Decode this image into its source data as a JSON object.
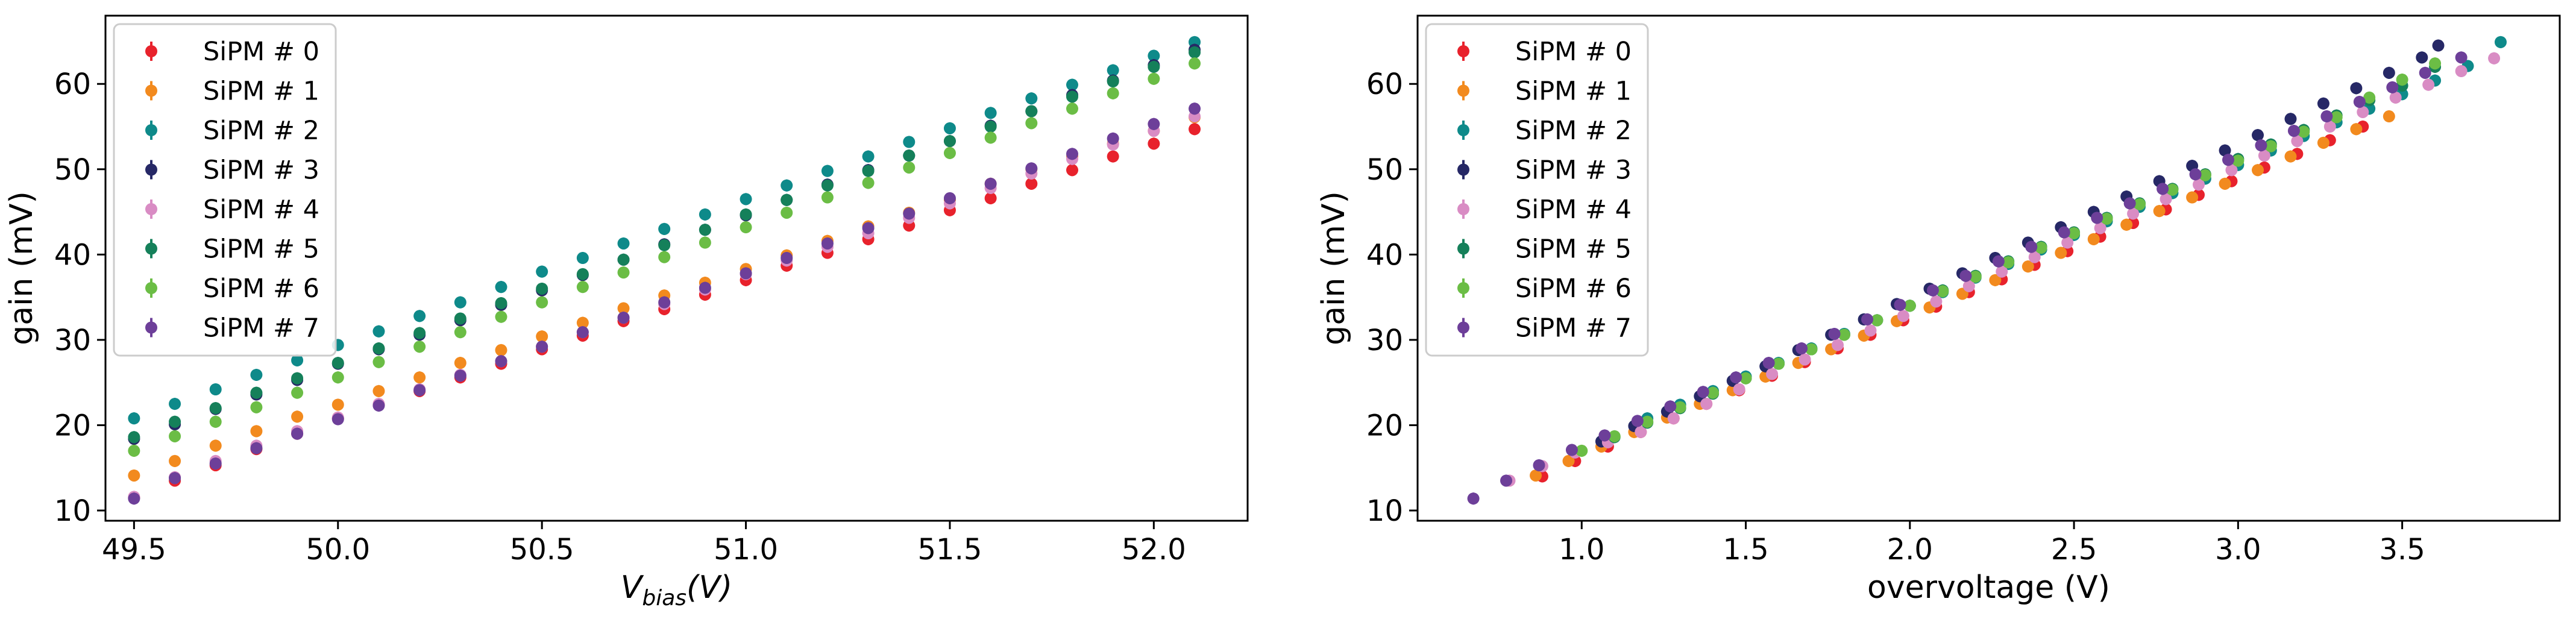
{
  "colors": [
    "#e8222c",
    "#f28a1e",
    "#0e8a8a",
    "#262866",
    "#d98cc4",
    "#15805a",
    "#6bbd45",
    "#6d3f99"
  ],
  "chart_data": [
    {
      "type": "scatter",
      "xlabel_main": "V",
      "xlabel_sub": "bias",
      "xlabel_tail": "(V)",
      "ylabel": "gain (mV)",
      "xlim": [
        49.43,
        52.23
      ],
      "ylim": [
        8.8,
        68
      ],
      "xticks": [
        49.5,
        50.0,
        50.5,
        51.0,
        51.5,
        52.0
      ],
      "xtick_labels": [
        "49.5",
        "50.0",
        "50.5",
        "51.0",
        "51.5",
        "52.0"
      ],
      "yticks": [
        10,
        20,
        30,
        40,
        50,
        60
      ],
      "ytick_labels": [
        "10",
        "20",
        "30",
        "40",
        "50",
        "60"
      ],
      "legend_position": "upper-left",
      "series": [
        {
          "name": "SiPM # 0",
          "x": [
            49.5,
            49.6,
            49.7,
            49.8,
            49.9,
            50.0,
            50.1,
            50.2,
            50.3,
            50.4,
            50.5,
            50.6,
            50.7,
            50.8,
            50.9,
            51.0,
            51.1,
            51.2,
            51.3,
            51.4,
            51.5,
            51.6,
            51.7,
            51.8,
            51.9,
            52.0,
            52.1
          ],
          "y": [
            11.5,
            13.5,
            15.3,
            17.2,
            19.0,
            20.8,
            22.4,
            24.0,
            25.6,
            27.2,
            28.9,
            30.5,
            32.2,
            33.6,
            35.3,
            37.0,
            38.7,
            40.2,
            41.8,
            43.4,
            45.2,
            46.6,
            48.3,
            49.9,
            51.5,
            53.0,
            54.7
          ]
        },
        {
          "name": "SiPM # 1",
          "x": [
            49.5,
            49.6,
            49.7,
            49.8,
            49.9,
            50.0,
            50.1,
            50.2,
            50.3,
            50.4,
            50.5,
            50.6,
            50.7,
            50.8,
            50.9,
            51.0,
            51.1,
            51.2,
            51.3,
            51.4,
            51.5,
            51.6,
            51.7,
            51.8,
            51.9,
            52.0,
            52.1
          ],
          "y": [
            14.1,
            15.8,
            17.6,
            19.3,
            21.0,
            22.4,
            24.0,
            25.6,
            27.3,
            28.8,
            30.4,
            32.0,
            33.7,
            35.2,
            36.7,
            38.3,
            39.9,
            41.6,
            43.3,
            44.9,
            46.4,
            48.3,
            50.0,
            51.5,
            53.0,
            54.5,
            56.1
          ]
        },
        {
          "name": "SiPM # 2",
          "x": [
            49.5,
            49.6,
            49.7,
            49.8,
            49.9,
            50.0,
            50.1,
            50.2,
            50.3,
            50.4,
            50.5,
            50.6,
            50.7,
            50.8,
            50.9,
            51.0,
            51.1,
            51.2,
            51.3,
            51.4,
            51.5,
            51.6,
            51.7,
            51.8,
            51.9,
            52.0,
            52.1
          ],
          "y": [
            20.8,
            22.5,
            24.2,
            25.9,
            27.6,
            29.4,
            31.0,
            32.8,
            34.4,
            36.2,
            38.0,
            39.6,
            41.3,
            43.0,
            44.7,
            46.5,
            48.1,
            49.8,
            51.5,
            53.2,
            54.8,
            56.6,
            58.3,
            59.9,
            61.6,
            63.3,
            64.9
          ]
        },
        {
          "name": "SiPM # 3",
          "x": [
            49.5,
            49.6,
            49.7,
            49.8,
            49.9,
            50.0,
            50.1,
            50.2,
            50.3,
            50.4,
            50.5,
            50.6,
            50.7,
            50.8,
            50.9,
            51.0,
            51.1,
            51.2,
            51.3,
            51.4,
            51.5,
            51.6,
            51.7,
            51.8,
            51.9,
            52.0,
            52.1
          ],
          "y": [
            18.4,
            20.1,
            21.9,
            23.6,
            25.3,
            27.2,
            28.9,
            30.6,
            32.3,
            34.1,
            35.8,
            37.6,
            39.4,
            41.2,
            42.9,
            44.6,
            46.4,
            48.2,
            49.9,
            51.6,
            53.3,
            55.1,
            56.8,
            58.7,
            60.4,
            62.2,
            64.0
          ]
        },
        {
          "name": "SiPM # 4",
          "x": [
            49.5,
            49.6,
            49.7,
            49.8,
            49.9,
            50.0,
            50.1,
            50.2,
            50.3,
            50.4,
            50.5,
            50.6,
            50.7,
            50.8,
            50.9,
            51.0,
            51.1,
            51.2,
            51.3,
            51.4,
            51.5,
            51.6,
            51.7,
            51.8,
            51.9,
            52.0,
            52.1
          ],
          "y": [
            11.6,
            13.9,
            15.8,
            17.6,
            19.3,
            20.9,
            22.5,
            24.2,
            25.9,
            27.5,
            29.2,
            30.9,
            32.6,
            34.2,
            35.9,
            37.7,
            39.3,
            40.9,
            42.5,
            44.3,
            46.0,
            47.8,
            49.5,
            51.2,
            52.9,
            54.5,
            56.2
          ]
        },
        {
          "name": "SiPM # 5",
          "x": [
            49.5,
            49.6,
            49.7,
            49.8,
            49.9,
            50.0,
            50.1,
            50.2,
            50.3,
            50.4,
            50.5,
            50.6,
            50.7,
            50.8,
            50.9,
            51.0,
            51.1,
            51.2,
            51.3,
            51.4,
            51.5,
            51.6,
            51.7,
            51.8,
            51.9,
            52.0,
            52.1
          ],
          "y": [
            18.6,
            20.4,
            22.0,
            23.8,
            25.5,
            27.3,
            29.0,
            30.8,
            32.5,
            34.3,
            36.0,
            37.7,
            39.4,
            41.1,
            42.9,
            44.7,
            46.4,
            48.1,
            49.8,
            51.6,
            53.3,
            55.0,
            56.8,
            58.5,
            60.3,
            62.0,
            63.7
          ]
        },
        {
          "name": "SiPM # 6",
          "x": [
            49.5,
            49.6,
            49.7,
            49.8,
            49.9,
            50.0,
            50.1,
            50.2,
            50.3,
            50.4,
            50.5,
            50.6,
            50.7,
            50.8,
            50.9,
            51.0,
            51.1,
            51.2,
            51.3,
            51.4,
            51.5,
            51.6,
            51.7,
            51.8,
            51.9,
            52.0,
            52.1
          ],
          "y": [
            17.0,
            18.7,
            20.4,
            22.1,
            23.8,
            25.6,
            27.4,
            29.2,
            30.9,
            32.7,
            34.4,
            36.2,
            37.9,
            39.7,
            41.4,
            43.2,
            44.9,
            46.7,
            48.4,
            50.2,
            51.9,
            53.7,
            55.4,
            57.1,
            58.9,
            60.6,
            62.4
          ]
        },
        {
          "name": "SiPM # 7",
          "x": [
            49.5,
            49.6,
            49.7,
            49.8,
            49.9,
            50.0,
            50.1,
            50.2,
            50.3,
            50.4,
            50.5,
            50.6,
            50.7,
            50.8,
            50.9,
            51.0,
            51.1,
            51.2,
            51.3,
            51.4,
            51.5,
            51.6,
            51.7,
            51.8,
            51.9,
            52.0,
            52.1
          ],
          "y": [
            11.4,
            13.8,
            15.5,
            17.3,
            19.0,
            20.7,
            22.3,
            24.1,
            25.8,
            27.5,
            29.2,
            30.9,
            32.6,
            34.4,
            36.1,
            37.8,
            39.6,
            41.3,
            43.1,
            44.8,
            46.6,
            48.3,
            50.1,
            51.8,
            53.6,
            55.3,
            57.1
          ]
        }
      ]
    },
    {
      "type": "scatter",
      "xlabel": "overvoltage (V)",
      "ylabel": "gain (mV)",
      "xlim": [
        0.5,
        3.98
      ],
      "ylim": [
        8.8,
        68
      ],
      "xticks": [
        1.0,
        1.5,
        2.0,
        2.5,
        3.0,
        3.5
      ],
      "xtick_labels": [
        "1.0",
        "1.5",
        "2.0",
        "2.5",
        "3.0",
        "3.5"
      ],
      "yticks": [
        10,
        20,
        30,
        40,
        50,
        60
      ],
      "ytick_labels": [
        "10",
        "20",
        "30",
        "40",
        "50",
        "60"
      ],
      "legend_position": "upper-left",
      "series": [
        {
          "name": "SiPM # 0",
          "x": [
            0.88,
            0.98,
            1.08,
            1.18,
            1.28,
            1.38,
            1.48,
            1.58,
            1.68,
            1.78,
            1.88,
            1.98,
            2.08,
            2.18,
            2.28,
            2.38,
            2.48,
            2.58,
            2.68,
            2.78,
            2.88,
            2.98,
            3.08,
            3.18,
            3.28,
            3.38
          ],
          "y": [
            14.0,
            15.8,
            17.5,
            19.2,
            20.8,
            22.5,
            24.1,
            25.8,
            27.4,
            29.0,
            30.6,
            32.3,
            33.9,
            35.6,
            37.1,
            38.8,
            40.4,
            42.1,
            43.7,
            45.3,
            47.0,
            48.6,
            50.2,
            51.8,
            53.4,
            55.0
          ]
        },
        {
          "name": "SiPM # 1",
          "x": [
            0.86,
            0.96,
            1.06,
            1.16,
            1.26,
            1.36,
            1.46,
            1.56,
            1.66,
            1.76,
            1.86,
            1.96,
            2.06,
            2.16,
            2.26,
            2.36,
            2.46,
            2.56,
            2.66,
            2.76,
            2.86,
            2.96,
            3.06,
            3.16,
            3.26,
            3.36,
            3.46
          ],
          "y": [
            14.1,
            15.8,
            17.5,
            19.2,
            20.9,
            22.5,
            24.1,
            25.7,
            27.3,
            28.9,
            30.5,
            32.2,
            33.8,
            35.4,
            37.0,
            38.6,
            40.2,
            41.8,
            43.5,
            45.1,
            46.7,
            48.3,
            49.9,
            51.5,
            53.1,
            54.7,
            56.2
          ]
        },
        {
          "name": "SiPM # 2",
          "x": [
            1.2,
            1.3,
            1.4,
            1.5,
            1.6,
            1.7,
            1.8,
            1.9,
            2.0,
            2.1,
            2.2,
            2.3,
            2.4,
            2.5,
            2.6,
            2.7,
            2.8,
            2.9,
            3.0,
            3.1,
            3.2,
            3.3,
            3.4,
            3.5,
            3.6,
            3.7,
            3.8
          ],
          "y": [
            20.8,
            22.4,
            24.0,
            25.7,
            27.3,
            29.0,
            30.7,
            32.3,
            34.0,
            35.6,
            37.3,
            38.9,
            40.6,
            42.3,
            43.9,
            45.6,
            47.2,
            48.9,
            50.5,
            52.2,
            53.9,
            55.5,
            57.1,
            58.8,
            60.4,
            62.1,
            64.9
          ]
        },
        {
          "name": "SiPM # 3",
          "x": [
            1.06,
            1.16,
            1.26,
            1.36,
            1.46,
            1.56,
            1.66,
            1.76,
            1.86,
            1.96,
            2.06,
            2.16,
            2.26,
            2.36,
            2.46,
            2.56,
            2.66,
            2.76,
            2.86,
            2.96,
            3.06,
            3.16,
            3.26,
            3.36,
            3.46,
            3.56,
            3.61
          ],
          "y": [
            18.1,
            19.9,
            21.6,
            23.4,
            25.2,
            26.9,
            28.8,
            30.6,
            32.4,
            34.2,
            36.0,
            37.8,
            39.6,
            41.4,
            43.2,
            45.0,
            46.8,
            48.6,
            50.4,
            52.2,
            54.0,
            55.9,
            57.7,
            59.5,
            61.3,
            63.1,
            64.5
          ]
        },
        {
          "name": "SiPM # 4",
          "x": [
            0.78,
            0.88,
            0.98,
            1.08,
            1.18,
            1.28,
            1.38,
            1.48,
            1.58,
            1.68,
            1.78,
            1.88,
            1.98,
            2.08,
            2.18,
            2.28,
            2.38,
            2.48,
            2.58,
            2.68,
            2.78,
            2.88,
            2.98,
            3.08,
            3.18,
            3.28,
            3.38,
            3.48,
            3.58,
            3.68,
            3.78
          ],
          "y": [
            13.5,
            15.2,
            16.8,
            18.0,
            19.2,
            20.8,
            22.5,
            24.2,
            26.0,
            27.7,
            29.4,
            31.1,
            32.8,
            34.5,
            36.3,
            38.0,
            39.7,
            41.4,
            43.1,
            44.8,
            46.5,
            48.2,
            49.9,
            51.6,
            53.3,
            55.0,
            56.7,
            58.4,
            59.9,
            61.5,
            63.0
          ]
        },
        {
          "name": "SiPM # 5",
          "x": [
            1.1,
            1.2,
            1.3,
            1.4,
            1.5,
            1.6,
            1.7,
            1.8,
            1.9,
            2.0,
            2.1,
            2.2,
            2.3,
            2.4,
            2.5,
            2.6,
            2.7,
            2.8,
            2.9,
            3.0,
            3.1,
            3.2,
            3.3,
            3.4,
            3.5,
            3.6
          ],
          "y": [
            18.6,
            20.3,
            22.0,
            23.7,
            25.5,
            27.2,
            28.9,
            30.6,
            32.3,
            34.0,
            35.8,
            37.5,
            39.2,
            40.9,
            42.6,
            44.3,
            46.0,
            47.7,
            49.4,
            51.2,
            52.9,
            54.6,
            56.3,
            58.1,
            59.8,
            62.0
          ]
        },
        {
          "name": "SiPM # 6",
          "x": [
            1.0,
            1.1,
            1.2,
            1.3,
            1.4,
            1.5,
            1.6,
            1.7,
            1.8,
            1.9,
            2.0,
            2.1,
            2.2,
            2.3,
            2.4,
            2.5,
            2.6,
            2.7,
            2.8,
            2.9,
            3.0,
            3.1,
            3.2,
            3.3,
            3.4,
            3.5,
            3.6
          ],
          "y": [
            17.0,
            18.7,
            20.4,
            22.1,
            23.8,
            25.5,
            27.2,
            28.9,
            30.6,
            32.3,
            34.0,
            35.7,
            37.4,
            39.1,
            40.8,
            42.5,
            44.2,
            45.9,
            47.6,
            49.3,
            51.0,
            52.7,
            54.4,
            56.1,
            58.4,
            60.5,
            62.4
          ]
        },
        {
          "name": "SiPM # 7",
          "x": [
            0.67,
            0.77,
            0.87,
            0.97,
            1.07,
            1.17,
            1.27,
            1.37,
            1.47,
            1.57,
            1.67,
            1.77,
            1.87,
            1.97,
            2.07,
            2.17,
            2.27,
            2.37,
            2.47,
            2.57,
            2.67,
            2.77,
            2.87,
            2.97,
            3.07,
            3.17,
            3.27,
            3.37,
            3.47,
            3.57,
            3.68
          ],
          "y": [
            11.4,
            13.5,
            15.3,
            17.1,
            18.8,
            20.5,
            22.2,
            23.9,
            25.6,
            27.3,
            29.0,
            30.7,
            32.4,
            34.1,
            35.8,
            37.5,
            39.2,
            40.9,
            42.6,
            44.3,
            46.0,
            47.7,
            49.4,
            51.1,
            52.8,
            54.5,
            56.2,
            57.9,
            59.6,
            61.3,
            63.1
          ]
        }
      ]
    }
  ]
}
